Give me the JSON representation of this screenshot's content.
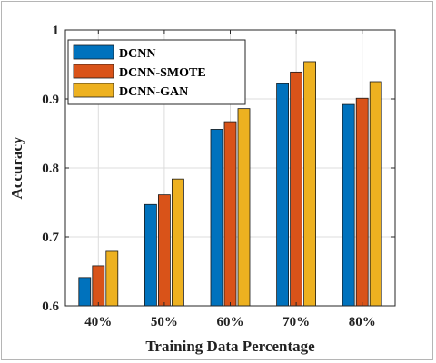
{
  "chart_data": {
    "type": "bar",
    "categories": [
      "40%",
      "50%",
      "60%",
      "70%",
      "80%"
    ],
    "series": [
      {
        "name": "DCNN",
        "color": "#0072BD",
        "values": [
          0.641,
          0.747,
          0.856,
          0.922,
          0.892
        ]
      },
      {
        "name": "DCNN-SMOTE",
        "color": "#D95319",
        "values": [
          0.658,
          0.761,
          0.867,
          0.939,
          0.901
        ]
      },
      {
        "name": "DCNN-GAN",
        "color": "#EDB120",
        "values": [
          0.679,
          0.784,
          0.886,
          0.954,
          0.925
        ]
      }
    ],
    "xlabel": "Training Data Percentage",
    "ylabel": "Accuracy",
    "ylim": [
      0.6,
      1.0
    ],
    "yticks": [
      0.6,
      0.7,
      0.8,
      0.9,
      1.0
    ],
    "ytick_labels": [
      "0.6",
      "0.7",
      "0.8",
      "0.9",
      "1"
    ],
    "grid": true,
    "legend_position": "top-left"
  }
}
